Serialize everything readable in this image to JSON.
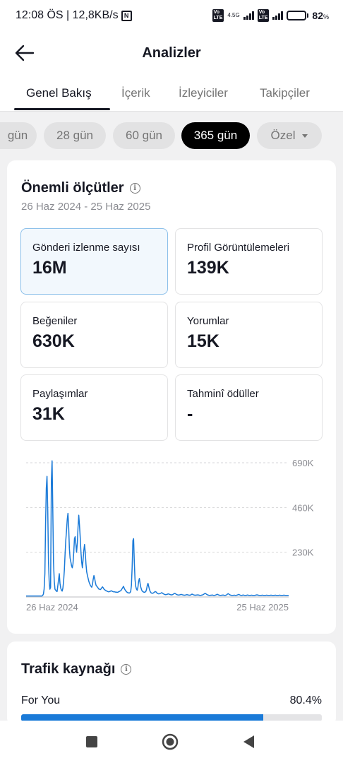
{
  "status_bar": {
    "time_speed": "12:08 ÖS | 12,8KB/s",
    "network_type": "4.5G",
    "battery_percent": "82",
    "battery_symbol": "%",
    "battery_level": 0.82
  },
  "header": {
    "title": "Analizler",
    "back_icon": "arrow-left-icon"
  },
  "tabs": [
    {
      "label": "Genel Bakış",
      "active": true
    },
    {
      "label": "İçerik",
      "active": false
    },
    {
      "label": "İzleyiciler",
      "active": false
    },
    {
      "label": "Takipçiler",
      "active": false
    }
  ],
  "period_chips": [
    {
      "label": "gün",
      "selected": false
    },
    {
      "label": "28 gün",
      "selected": false
    },
    {
      "label": "60 gün",
      "selected": false
    },
    {
      "label": "365 gün",
      "selected": true
    },
    {
      "label": "Özel",
      "selected": false,
      "has_dropdown": true
    }
  ],
  "key_metrics": {
    "title": "Önemli ölçütler",
    "date_range": "26 Haz 2024 - 25 Haz 2025",
    "items": [
      {
        "label": "Gönderi izlenme sayısı",
        "value": "16M",
        "selected": true
      },
      {
        "label": "Profil Görüntülemeleri",
        "value": "139K",
        "selected": false
      },
      {
        "label": "Beğeniler",
        "value": "630K",
        "selected": false
      },
      {
        "label": "Yorumlar",
        "value": "15K",
        "selected": false
      },
      {
        "label": "Paylaşımlar",
        "value": "31K",
        "selected": false
      },
      {
        "label": "Tahminî ödüller",
        "value": "-",
        "selected": false
      }
    ]
  },
  "chart_data": {
    "type": "line",
    "title": "",
    "xlabel": "",
    "ylabel": "",
    "x_tick_labels": [
      "26 Haz 2024",
      "25 Haz 2025"
    ],
    "y_tick_labels": [
      "690K",
      "460K",
      "230K"
    ],
    "y_ticks": [
      690000,
      460000,
      230000
    ],
    "ylim": [
      0,
      690000
    ],
    "grid": true,
    "line_color": "#1a7ad8",
    "series": [
      {
        "x": [
          0,
          22,
          23,
          24,
          25,
          26,
          27,
          28,
          29,
          30,
          31,
          32,
          33,
          34,
          35,
          36,
          37,
          38,
          39,
          40,
          41,
          42,
          43,
          44,
          45,
          46,
          47,
          48,
          49,
          50,
          51,
          52,
          53,
          54,
          55,
          56,
          57,
          58,
          59,
          60,
          61,
          62,
          63,
          64,
          65,
          66,
          67,
          68,
          69,
          70,
          71,
          72,
          73,
          74,
          75,
          76,
          77,
          78,
          79,
          80,
          81,
          82,
          83,
          84,
          85,
          86,
          87,
          88,
          89,
          90,
          91,
          92,
          93,
          94,
          95,
          96,
          97,
          98,
          99,
          100,
          101,
          102,
          103,
          104,
          105,
          106,
          107,
          108,
          109,
          110,
          111,
          112,
          113,
          114,
          115,
          116,
          117,
          118,
          119,
          120,
          121,
          122,
          123,
          124,
          125,
          126,
          127,
          128,
          129,
          130,
          131,
          132,
          133,
          134,
          135,
          136,
          137,
          138,
          139,
          140,
          141,
          142,
          143,
          144,
          145,
          146,
          147,
          148,
          149,
          150,
          151,
          152,
          153,
          154,
          155,
          156,
          157,
          158,
          159,
          160,
          161,
          162,
          163,
          164,
          165,
          166,
          167,
          168,
          169,
          170,
          171,
          172,
          173,
          174,
          175,
          176,
          177,
          178,
          179,
          180,
          181,
          182,
          183,
          184,
          185,
          186,
          187,
          188,
          189,
          190,
          191,
          192,
          193,
          194,
          195,
          196,
          197,
          198,
          199,
          200,
          201,
          202,
          203,
          204,
          205,
          206,
          207,
          208,
          209,
          210,
          211,
          212,
          213,
          214,
          215,
          216,
          217,
          218,
          219,
          220,
          221,
          222,
          223,
          224,
          225,
          226,
          227,
          228,
          229,
          230,
          231,
          232,
          233,
          234,
          235,
          236,
          237,
          238,
          239,
          240,
          241,
          242,
          243,
          244,
          245,
          246,
          247,
          248,
          249,
          250,
          251,
          252,
          253,
          254,
          255,
          256,
          257,
          258,
          259,
          260,
          261,
          262,
          263,
          264,
          265,
          266,
          267,
          268,
          269,
          270,
          271,
          272,
          273,
          274,
          275,
          276,
          277,
          278,
          279,
          280,
          281,
          282,
          283,
          284,
          285,
          286,
          287,
          288,
          289,
          290,
          291,
          292,
          293,
          294,
          295,
          296,
          297,
          298,
          299,
          300,
          301,
          302,
          303,
          304,
          305,
          306,
          307,
          308,
          309,
          310,
          311,
          312,
          313,
          314,
          315,
          316,
          317,
          318,
          319,
          320,
          321,
          322,
          323,
          324,
          325,
          326,
          327,
          328,
          329,
          330,
          331,
          332,
          333,
          334,
          335,
          336,
          337,
          338,
          339,
          340,
          341,
          342,
          343,
          344,
          345,
          346,
          347,
          348,
          349,
          350,
          351,
          352,
          353,
          354,
          355,
          356,
          357,
          358,
          359,
          360,
          361,
          362,
          363,
          364
        ],
        "y": [
          5000,
          5000,
          8000,
          15000,
          40000,
          120000,
          380000,
          560000,
          620000,
          440000,
          180000,
          80000,
          40000,
          50000,
          600000,
          700000,
          450000,
          180000,
          80000,
          40000,
          35000,
          30000,
          28000,
          60000,
          90000,
          120000,
          70000,
          45000,
          35000,
          30000,
          45000,
          80000,
          140000,
          220000,
          290000,
          340000,
          400000,
          430000,
          360000,
          250000,
          200000,
          180000,
          160000,
          150000,
          170000,
          230000,
          300000,
          310000,
          270000,
          230000,
          280000,
          360000,
          420000,
          370000,
          310000,
          230000,
          180000,
          150000,
          190000,
          240000,
          270000,
          230000,
          170000,
          130000,
          110000,
          95000,
          80000,
          70000,
          60000,
          55000,
          50000,
          65000,
          90000,
          110000,
          95000,
          75000,
          60000,
          55000,
          50000,
          45000,
          40000,
          40000,
          38000,
          42000,
          48000,
          52000,
          46000,
          40000,
          37000,
          34000,
          32000,
          30000,
          28000,
          27000,
          27000,
          28000,
          30000,
          32000,
          30000,
          28000,
          27000,
          26000,
          26000,
          25000,
          25000,
          24000,
          24000,
          26000,
          28000,
          30000,
          32000,
          36000,
          42000,
          48000,
          55000,
          45000,
          38000,
          32000,
          28000,
          24000,
          22000,
          21000,
          20000,
          22000,
          28000,
          60000,
          150000,
          290000,
          300000,
          180000,
          90000,
          55000,
          40000,
          35000,
          50000,
          80000,
          95000,
          70000,
          50000,
          38000,
          30000,
          27000,
          25000,
          24000,
          25000,
          28000,
          40000,
          60000,
          70000,
          55000,
          38000,
          28000,
          22000,
          20000,
          19000,
          20000,
          22000,
          25000,
          28000,
          26000,
          22000,
          19000,
          17000,
          16000,
          17000,
          18000,
          20000,
          22000,
          20000,
          17000,
          15000,
          13000,
          12000,
          12000,
          13000,
          14000,
          16000,
          15000,
          13000,
          12000,
          11000,
          11000,
          12000,
          14000,
          17000,
          19000,
          17000,
          14000,
          12000,
          11000,
          10000,
          10000,
          11000,
          12000,
          13000,
          12000,
          11000,
          10000,
          9000,
          9000,
          10000,
          11000,
          12000,
          11000,
          10000,
          9000,
          9000,
          10000,
          12000,
          15000,
          13000,
          11000,
          10000,
          9000,
          9000,
          10000,
          10000,
          11000,
          10000,
          9000,
          8000,
          8000,
          9000,
          10000,
          11000,
          13000,
          16000,
          19000,
          17000,
          14000,
          12000,
          10000,
          9000,
          8000,
          8000,
          9000,
          9000,
          10000,
          9000,
          8000,
          8000,
          9000,
          10000,
          12000,
          14000,
          12000,
          10000,
          9000,
          8000,
          8000,
          9000,
          9000,
          10000,
          9000,
          8000,
          8000,
          9000,
          11000,
          14000,
          17000,
          15000,
          12000,
          10000,
          9000,
          8000,
          8000,
          8000,
          9000,
          9000,
          8000,
          8000,
          9000,
          10000,
          12000,
          13000,
          11000,
          9000,
          8000,
          8000,
          9000,
          10000,
          9000,
          8000,
          8000,
          8000,
          9000,
          10000,
          9000,
          8000,
          8000,
          8000,
          9000,
          9000,
          8000,
          8000,
          8000,
          8000,
          9000,
          10000,
          11000,
          10000,
          9000,
          8000,
          8000,
          8000,
          8000,
          9000,
          9000,
          8000,
          8000,
          8000,
          8000,
          9000,
          9000,
          8000,
          8000,
          8000,
          8000,
          9000,
          9000,
          8000,
          8000,
          8000,
          8000,
          9000,
          9000,
          8000,
          8000,
          8000,
          8000,
          9000,
          9000,
          8000,
          8000,
          8000,
          8000,
          9000,
          9000,
          8000,
          8000,
          8000,
          8000,
          8000,
          8000
        ]
      }
    ]
  },
  "traffic": {
    "title": "Trafik kaynağı",
    "rows": [
      {
        "label": "For You",
        "value_label": "80.4%",
        "value": 0.804
      }
    ]
  },
  "nav": {
    "recent_icon": "square-recent-apps-icon",
    "home_icon": "circle-home-icon",
    "back_icon": "triangle-back-icon"
  }
}
